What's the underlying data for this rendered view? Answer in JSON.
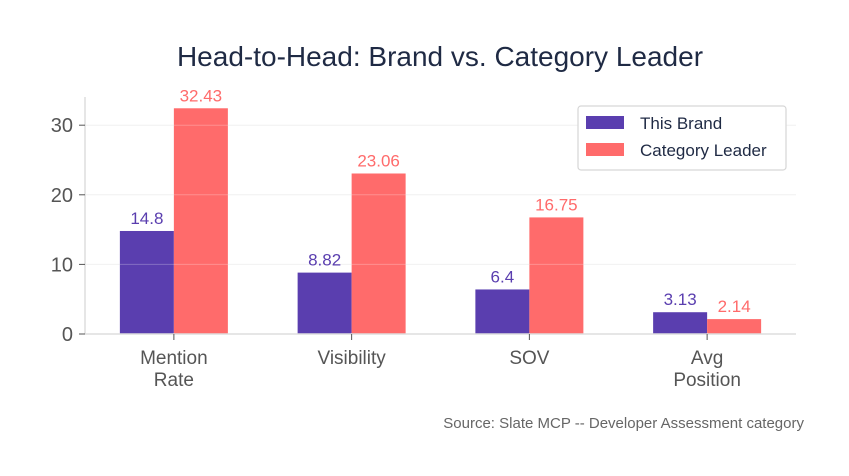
{
  "chart_data": {
    "type": "bar",
    "title": "Head-to-Head: Brand vs. Category Leader",
    "xlabel": "",
    "ylabel": "",
    "categories": [
      [
        "Mention",
        "Rate"
      ],
      [
        "Visibility"
      ],
      [
        "SOV"
      ],
      [
        "Avg",
        "Position"
      ]
    ],
    "series": [
      {
        "name": "This Brand",
        "color": "#5a3eaf",
        "values": [
          14.8,
          8.82,
          6.4,
          3.13
        ],
        "labels": [
          "14.8",
          "8.82",
          "6.4",
          "3.13"
        ]
      },
      {
        "name": "Category Leader",
        "color": "#ff6b6b",
        "values": [
          32.43,
          23.06,
          16.75,
          2.14
        ],
        "labels": [
          "32.43",
          "23.06",
          "16.75",
          "2.14"
        ]
      }
    ],
    "ylim": [
      0,
      34.05
    ],
    "yticks": [
      0,
      10,
      20,
      30
    ],
    "grid": true,
    "legend_position": "top-right",
    "source": "Source: Slate MCP -- Developer Assessment category"
  }
}
